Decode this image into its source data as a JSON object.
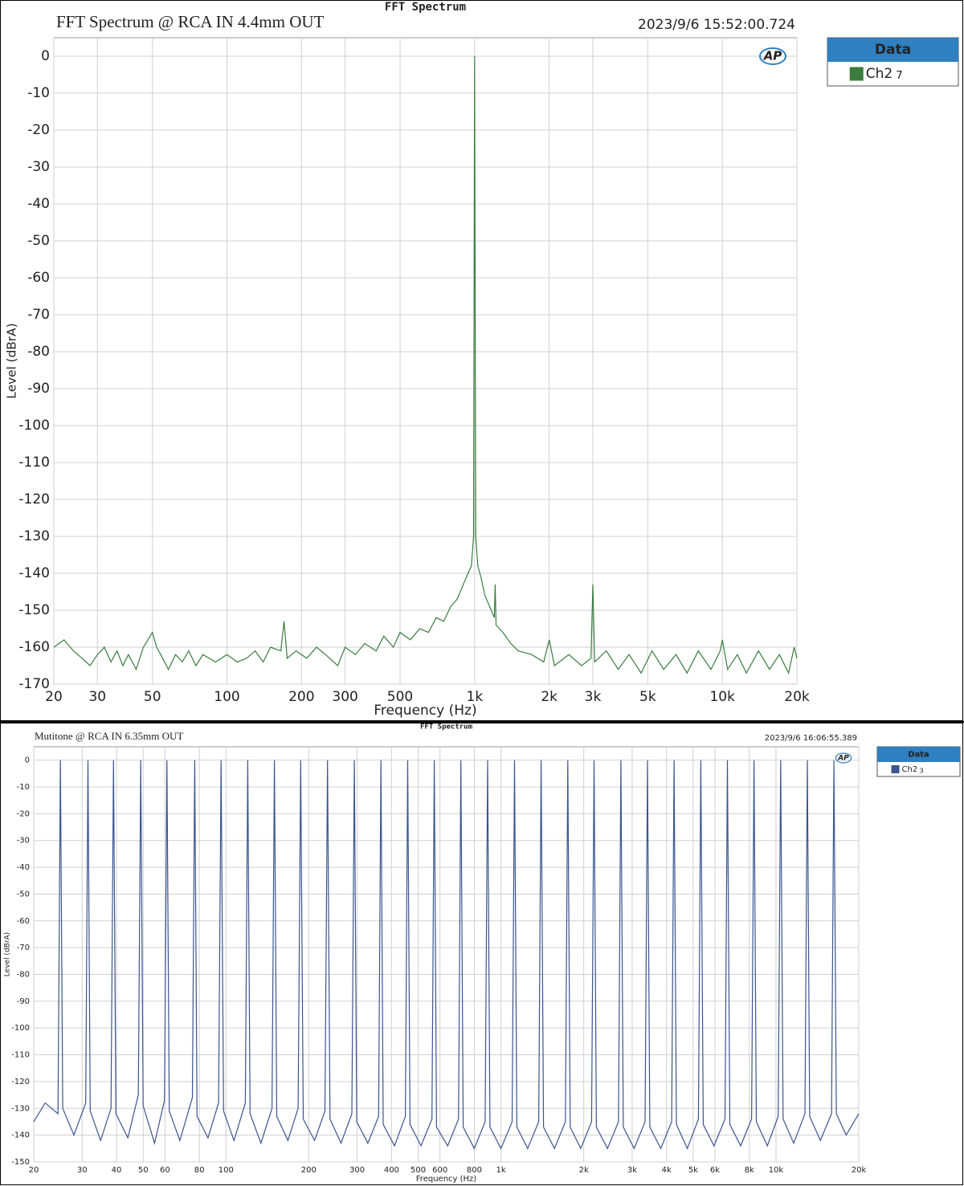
{
  "chart_data": [
    {
      "type": "line",
      "title": "FFT Spectrum",
      "subtitle": "FFT Spectrum @  RCA IN 4.4mm OUT",
      "timestamp": "2023/9/6 15:52:00.724",
      "logo_text": "AP",
      "xlabel": "Frequency (Hz)",
      "ylabel": "Level (dBrA)",
      "xscale": "log",
      "grid": true,
      "xlim": [
        20,
        20000
      ],
      "ylim": [
        -170,
        5
      ],
      "xticks": [
        20,
        30,
        50,
        100,
        200,
        300,
        500,
        {
          "value": 1000,
          "label": "1k"
        },
        {
          "value": 2000,
          "label": "2k"
        },
        {
          "value": 3000,
          "label": "3k"
        },
        {
          "value": 5000,
          "label": "5k"
        },
        {
          "value": 10000,
          "label": "10k"
        },
        {
          "value": 20000,
          "label": "20k"
        }
      ],
      "yticks": [
        0,
        -10,
        -20,
        -30,
        -40,
        -50,
        -60,
        -70,
        -80,
        -90,
        -100,
        -110,
        -120,
        -130,
        -140,
        -150,
        -160,
        -170
      ],
      "legend_title": "Data",
      "legend_index": "7",
      "legend": "top-right-outside",
      "x": [
        20,
        22,
        24,
        26,
        28,
        30,
        32,
        34,
        36,
        38,
        40,
        43,
        46,
        48,
        50,
        52,
        55,
        58,
        62,
        66,
        70,
        75,
        80,
        90,
        100,
        110,
        120,
        130,
        140,
        150,
        165,
        170,
        175,
        190,
        210,
        230,
        250,
        280,
        300,
        330,
        360,
        400,
        430,
        470,
        500,
        550,
        600,
        650,
        700,
        750,
        800,
        850,
        900,
        940,
        970,
        990,
        1000,
        1010,
        1030,
        1060,
        1100,
        1150,
        1200,
        1210,
        1220,
        1300,
        1400,
        1500,
        1700,
        1900,
        2000,
        2100,
        2400,
        2700,
        2950,
        3000,
        3050,
        3400,
        3800,
        4200,
        4700,
        5200,
        5800,
        6500,
        7200,
        8000,
        9000,
        9800,
        10000,
        10500,
        11500,
        12500,
        14000,
        15500,
        17000,
        18500,
        19500,
        20000
      ],
      "series": [
        {
          "name": "Ch2",
          "color": "#3a7d3f",
          "values": [
            -160,
            -158,
            -161,
            -163,
            -165,
            -162,
            -160,
            -164,
            -161,
            -165,
            -162,
            -166,
            -160,
            -158,
            -156,
            -160,
            -163,
            -166,
            -162,
            -164,
            -161,
            -165,
            -162,
            -164,
            -162,
            -164,
            -163,
            -161,
            -164,
            -160,
            -161,
            -153,
            -163,
            -161,
            -163,
            -160,
            -162,
            -165,
            -160,
            -162,
            -159,
            -161,
            -157,
            -160,
            -156,
            -158,
            -155,
            -156,
            -152,
            -153,
            -149,
            -147,
            -143,
            -140,
            -138,
            -130,
            0,
            -130,
            -138,
            -141,
            -146,
            -149,
            -152,
            -143,
            -154,
            -156,
            -159,
            -161,
            -162,
            -164,
            -158,
            -165,
            -162,
            -165,
            -163,
            -143,
            -164,
            -161,
            -166,
            -162,
            -167,
            -161,
            -166,
            -162,
            -167,
            -161,
            -166,
            -161,
            -158,
            -166,
            -162,
            -167,
            -161,
            -166,
            -162,
            -167,
            -160,
            -163
          ]
        }
      ]
    },
    {
      "type": "line",
      "title": "FFT Spectrum",
      "subtitle": "Mutitone @ RCA IN 6.35mm OUT",
      "timestamp": "2023/9/6 16:06:55.389",
      "logo_text": "AP",
      "xlabel": "Frequency (Hz)",
      "ylabel": "Level (dBrA)",
      "xscale": "log",
      "grid": true,
      "xlim": [
        20,
        20000
      ],
      "ylim": [
        -150,
        5
      ],
      "xticks": [
        20,
        30,
        40,
        50,
        60,
        80,
        100,
        200,
        300,
        400,
        500,
        600,
        800,
        {
          "value": 1000,
          "label": "1k"
        },
        {
          "value": 2000,
          "label": "2k"
        },
        {
          "value": 3000,
          "label": "3k"
        },
        {
          "value": 4000,
          "label": "4k"
        },
        {
          "value": 5000,
          "label": "5k"
        },
        {
          "value": 6000,
          "label": "6k"
        },
        {
          "value": 8000,
          "label": "8k"
        },
        {
          "value": 10000,
          "label": "10k"
        },
        {
          "value": 20000,
          "label": "20k"
        }
      ],
      "yticks": [
        0,
        -10,
        -20,
        -30,
        -40,
        -50,
        -60,
        -70,
        -80,
        -90,
        -100,
        -110,
        -120,
        -130,
        -140,
        -150
      ],
      "legend_title": "Data",
      "legend_index": "3",
      "legend": "top-right-outside",
      "x": [
        20,
        22,
        24.5,
        25,
        25.5,
        28,
        30.9,
        31.5,
        32.1,
        35,
        38.2,
        39,
        39.8,
        44,
        48,
        49,
        50,
        55,
        59.8,
        61,
        62.2,
        68,
        75.5,
        77,
        78.5,
        86,
        94,
        96,
        98,
        107,
        117.6,
        120,
        122.4,
        134,
        147,
        150,
        153,
        168,
        183,
        187,
        191,
        210,
        229,
        234,
        239,
        262,
        287,
        293,
        299,
        328,
        359,
        366,
        373,
        410,
        449,
        458,
        467,
        512,
        561,
        572,
        583,
        640,
        701,
        715,
        729,
        800,
        876,
        894,
        912,
        1000,
        1098,
        1120,
        1142,
        1250,
        1372,
        1400,
        1428,
        1565,
        1715,
        1750,
        1785,
        1950,
        2136,
        2180,
        2224,
        2440,
        2675,
        2730,
        2785,
        3050,
        3342,
        3410,
        3478,
        3810,
        4175,
        4260,
        4345,
        4760,
        5223,
        5330,
        5437,
        5950,
        6527,
        6660,
        6793,
        7440,
        8154,
        8320,
        8486,
        9300,
        10190,
        10400,
        10610,
        11600,
        12740,
        13000,
        13260,
        14500,
        15925,
        16250,
        16575,
        18000,
        20000
      ],
      "series": [
        {
          "name": "Ch2",
          "color": "#3b5590",
          "values": [
            -135,
            -128,
            -132,
            0,
            -130,
            -140,
            -128,
            0,
            -131,
            -142,
            -130,
            0,
            -132,
            -141,
            -125,
            0,
            -129,
            -143,
            -127,
            0,
            -131,
            -142,
            -126,
            0,
            -133,
            -141,
            -128,
            0,
            -131,
            -142,
            -128,
            0,
            -132,
            -143,
            -130,
            0,
            -133,
            -142,
            -130,
            0,
            -134,
            -142,
            -131,
            0,
            -134,
            -143,
            -132,
            0,
            -135,
            -143,
            -133,
            0,
            -136,
            -144,
            -133,
            0,
            -136,
            -144,
            -134,
            0,
            -137,
            -144,
            -134,
            0,
            -137,
            -145,
            -135,
            0,
            -137,
            -145,
            -135,
            0,
            -137,
            -145,
            -135,
            0,
            -137,
            -145,
            -135,
            0,
            -137,
            -145,
            -135,
            0,
            -137,
            -145,
            -135,
            0,
            -137,
            -145,
            -135,
            0,
            -137,
            -145,
            -135,
            0,
            -136,
            -145,
            -134,
            0,
            -136,
            -144,
            -134,
            0,
            -136,
            -144,
            -134,
            0,
            -135,
            -144,
            -133,
            0,
            -134,
            -143,
            -132,
            0,
            -133,
            -142,
            -132,
            0,
            -132,
            -140,
            -132
          ]
        }
      ]
    }
  ]
}
